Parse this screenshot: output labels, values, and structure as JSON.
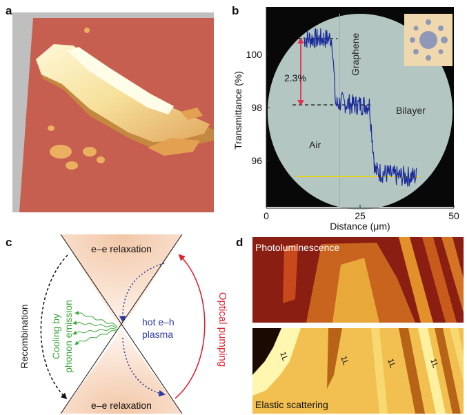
{
  "panels": {
    "a": {
      "label": "a"
    },
    "b": {
      "label": "b",
      "chart_data": {
        "type": "line",
        "xlabel": "Distance (μm)",
        "ylabel": "Transmittance (%)",
        "xlim": [
          0,
          50
        ],
        "ylim": [
          94.2,
          101.8
        ],
        "xticks": [
          "0",
          "25",
          "50"
        ],
        "yticks": [
          "96",
          "98",
          "100"
        ],
        "annotations": {
          "delta": "2.3%",
          "graphene": "Graphene",
          "bilayer": "Bilayer",
          "air": "Air"
        },
        "series": [
          {
            "color": "#1a2a9a",
            "x": [
              10,
              13,
              16,
              17.5,
              18.5,
              20,
              23,
              26,
              27.5,
              29,
              32,
              35,
              38,
              40
            ],
            "values": [
              100.6,
              100.6,
              100.6,
              100.6,
              98.1,
              98.2,
              98.1,
              98.1,
              98.1,
              95.6,
              95.5,
              95.4,
              95.4,
              95.4
            ]
          }
        ],
        "reference_lines": [
          {
            "y": 100.6,
            "style": "dashed",
            "color": "#000000"
          },
          {
            "y": 98.1,
            "style": "dashed",
            "color": "#000000"
          },
          {
            "y": 95.4,
            "style": "solid",
            "color": "#f0d000"
          }
        ]
      }
    },
    "c": {
      "label": "c",
      "texts": {
        "ee_top": "e–e relaxation",
        "ee_bottom": "e–e relaxation",
        "recombination": "Recombination",
        "cooling_line1": "Cooling by",
        "cooling_line2": "phonon emission",
        "hot_line1": "hot e–h",
        "hot_line2": "plasma",
        "optical": "Optical pumping"
      },
      "colors": {
        "cooling": "#3aa83a",
        "hot": "#2a3aa0",
        "optical": "#e02030"
      }
    },
    "d": {
      "label": "d",
      "top_title": "Photoluminescence",
      "bottom_title": "Elastic scattering",
      "layer_marks": [
        "1L",
        "1L",
        "1L",
        "1L"
      ]
    }
  }
}
